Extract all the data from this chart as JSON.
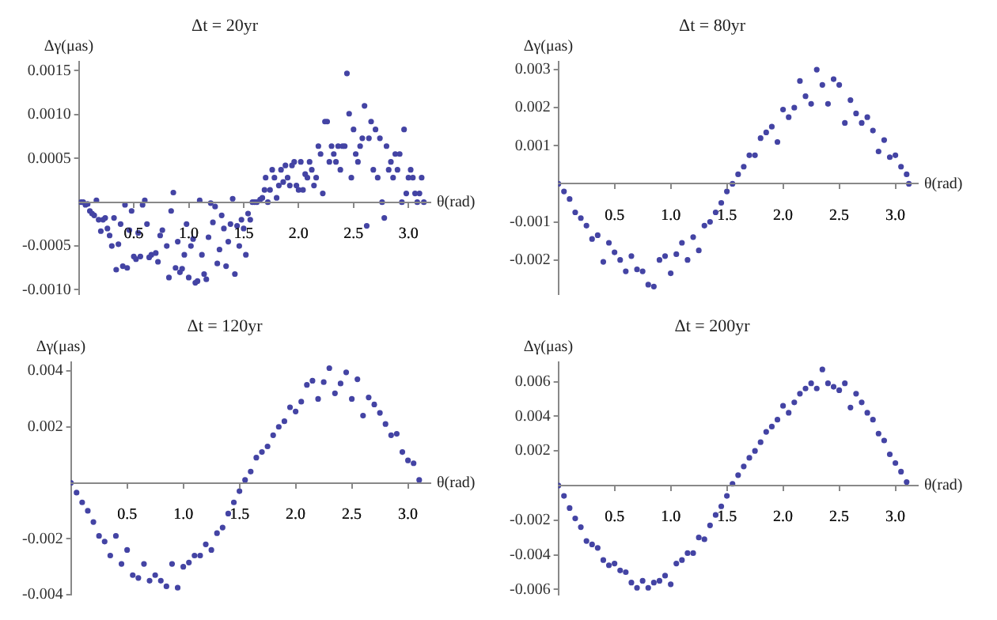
{
  "chart_data": [
    {
      "type": "scatter",
      "title": "Δt = 20yr",
      "xlabel": "θ(rad)",
      "ylabel": "Δγ(μas)",
      "color": "#4444a4",
      "marker": "circle",
      "xlim": [
        0,
        3.2
      ],
      "ylim": [
        -0.00105,
        0.0016
      ],
      "xticks": [
        {
          "value": 0.5,
          "label": "0.5"
        },
        {
          "value": 1,
          "label": "1.0"
        },
        {
          "value": 1.5,
          "label": "1.5"
        },
        {
          "value": 2,
          "label": "2.0"
        },
        {
          "value": 2.5,
          "label": "2.5"
        },
        {
          "value": 3,
          "label": "3.0"
        }
      ],
      "yticks": [
        {
          "value": -0.001,
          "label": "-0.0010"
        },
        {
          "value": -0.0005,
          "label": "-0.0005"
        },
        {
          "value": 0.0005,
          "label": "0.0005"
        },
        {
          "value": 0.001,
          "label": "0.0010"
        },
        {
          "value": 0.0015,
          "label": "0.0015"
        }
      ],
      "x": [
        0.02,
        0.04,
        0.06,
        0.08,
        0.1,
        0.12,
        0.14,
        0.16,
        0.18,
        0.2,
        0.22,
        0.24,
        0.26,
        0.28,
        0.3,
        0.32,
        0.34,
        0.36,
        0.38,
        0.4,
        0.42,
        0.44,
        0.46,
        0.48,
        0.5,
        0.52,
        0.54,
        0.56,
        0.58,
        0.6,
        0.62,
        0.64,
        0.66,
        0.7,
        0.72,
        0.74,
        0.76,
        0.8,
        0.82,
        0.84,
        0.86,
        0.88,
        0.9,
        0.92,
        0.94,
        0.96,
        0.98,
        1.0,
        1.02,
        1.04,
        1.06,
        1.08,
        1.1,
        1.12,
        1.14,
        1.16,
        1.18,
        1.2,
        1.22,
        1.24,
        1.26,
        1.28,
        1.3,
        1.32,
        1.34,
        1.36,
        1.38,
        1.4,
        1.42,
        1.44,
        1.46,
        1.48,
        1.5,
        1.52,
        1.54,
        1.56,
        1.58,
        1.6,
        1.62,
        1.65,
        1.67,
        1.69,
        1.7,
        1.72,
        1.74,
        1.76,
        1.78,
        1.8,
        1.82,
        1.84,
        1.86,
        1.88,
        1.9,
        1.92,
        1.94,
        1.96,
        1.98,
        2.0,
        2.02,
        2.04,
        2.06,
        2.08,
        2.1,
        2.12,
        2.14,
        2.16,
        2.18,
        2.2,
        2.22,
        2.24,
        2.26,
        2.28,
        2.3,
        2.32,
        2.34,
        2.36,
        2.38,
        2.4,
        2.42,
        2.44,
        2.46,
        2.48,
        2.5,
        2.52,
        2.54,
        2.56,
        2.58,
        2.6,
        2.62,
        2.64,
        2.66,
        2.68,
        2.7,
        2.72,
        2.74,
        2.76,
        2.78,
        2.8,
        2.82,
        2.84,
        2.86,
        2.88,
        2.9,
        2.92,
        2.94,
        2.96,
        2.98,
        3.0,
        3.02,
        3.04,
        3.06,
        3.08,
        3.1,
        3.12,
        3.14
      ],
      "values": [
        0,
        0,
        -3e-05,
        -2e-05,
        -0.0001,
        -0.00013,
        -0.00015,
        2e-05,
        -0.0002,
        -0.00033,
        -0.0002,
        -0.00018,
        -0.0003,
        -0.00038,
        -0.0005,
        -0.00018,
        -0.00077,
        -0.00048,
        -0.00025,
        -0.00073,
        -3e-05,
        -0.00075,
        -0.00032,
        -0.0001,
        -0.00062,
        -0.00065,
        -0.00035,
        -0.00062,
        -3e-05,
        2e-05,
        -0.00025,
        -0.00063,
        -0.0006,
        -0.00058,
        -0.00068,
        -0.00038,
        -0.00032,
        -0.0005,
        -0.00086,
        -0.0001,
        0.00011,
        -0.00075,
        -0.00045,
        -0.0008,
        -0.00076,
        -0.0006,
        -0.00025,
        -0.00086,
        -0.0005,
        -0.00042,
        -0.00092,
        -0.0009,
        2e-05,
        -0.0006,
        -0.00082,
        -0.00088,
        -0.0004,
        -1e-05,
        -0.00023,
        -5e-05,
        -0.0007,
        -0.00054,
        -0.00015,
        -0.0003,
        -0.00073,
        -0.00045,
        -0.00025,
        4e-05,
        -0.00082,
        -0.00027,
        -0.0005,
        -0.0002,
        -0.0003,
        -0.0006,
        -0.00013,
        -0.0002,
        0,
        0,
        0,
        3e-05,
        5e-05,
        0.00014,
        0.00028,
        0,
        0.00014,
        0.00037,
        0.00028,
        5e-05,
        0.00019,
        0.00037,
        0.00023,
        0.00042,
        0.00028,
        0.00019,
        0.00042,
        0.00046,
        0.00019,
        0.00014,
        0.00046,
        0.00014,
        0.00032,
        0.00028,
        0.00046,
        0.00037,
        0.00019,
        0.00028,
        0.00064,
        0.00055,
        0.0001,
        0.00092,
        0.00092,
        0.00046,
        0.00064,
        0.00055,
        0.00046,
        0.00064,
        0.00037,
        0.00064,
        0.00064,
        0.00147,
        0.00101,
        0.00028,
        0.00083,
        0.00055,
        0.00046,
        0.00064,
        0.00073,
        0.0011,
        -0.00027,
        0.00073,
        0.00092,
        0.00037,
        0.00083,
        0.00028,
        0.00073,
        0,
        -0.00018,
        0.00064,
        0.00037,
        0.00046,
        0.00028,
        0.00055,
        0.00037,
        0.00055,
        0,
        0.00083,
        0.0001,
        0.00028,
        0.00037,
        0.00028,
        0.0001,
        0,
        0.0001,
        0.00028,
        0
      ]
    },
    {
      "type": "scatter",
      "title": "Δt = 80yr",
      "xlabel": "θ(rad)",
      "ylabel": "Δγ(μas)",
      "color": "#4444a4",
      "marker": "circle",
      "xlim": [
        0,
        3.2
      ],
      "ylim": [
        -0.0029,
        0.0032
      ],
      "xticks": [
        {
          "value": 0.5,
          "label": "0.5"
        },
        {
          "value": 1,
          "label": "1.0"
        },
        {
          "value": 1.5,
          "label": "1.5"
        },
        {
          "value": 2,
          "label": "2.0"
        },
        {
          "value": 2.5,
          "label": "2.5"
        },
        {
          "value": 3,
          "label": "3.0"
        }
      ],
      "yticks": [
        {
          "value": -0.002,
          "label": "-0.002"
        },
        {
          "value": -0.001,
          "label": "-0.001"
        },
        {
          "value": 0.001,
          "label": "0.001"
        },
        {
          "value": 0.002,
          "label": "0.002"
        },
        {
          "value": 0.003,
          "label": "0.003"
        }
      ],
      "x": [
        0,
        0.05,
        0.1,
        0.15,
        0.2,
        0.25,
        0.3,
        0.35,
        0.4,
        0.45,
        0.5,
        0.55,
        0.6,
        0.65,
        0.7,
        0.75,
        0.8,
        0.85,
        0.9,
        0.95,
        1.0,
        1.05,
        1.1,
        1.15,
        1.2,
        1.25,
        1.3,
        1.35,
        1.4,
        1.45,
        1.5,
        1.55,
        1.6,
        1.65,
        1.7,
        1.75,
        1.8,
        1.85,
        1.9,
        1.95,
        2.0,
        2.05,
        2.1,
        2.15,
        2.2,
        2.25,
        2.3,
        2.35,
        2.4,
        2.45,
        2.5,
        2.55,
        2.6,
        2.65,
        2.7,
        2.75,
        2.8,
        2.85,
        2.9,
        2.95,
        3.0,
        3.05,
        3.1,
        3.12
      ],
      "values": [
        0,
        -0.0002,
        -0.0004,
        -0.00075,
        -0.0009,
        -0.0011,
        -0.00145,
        -0.00135,
        -0.00205,
        -0.00155,
        -0.0018,
        -0.002,
        -0.0023,
        -0.0019,
        -0.00225,
        -0.0023,
        -0.00265,
        -0.0027,
        -0.002,
        -0.0019,
        -0.00235,
        -0.00185,
        -0.00155,
        -0.002,
        -0.0014,
        -0.00175,
        -0.0011,
        -0.001,
        -0.00075,
        -0.0005,
        -0.0002,
        0,
        0.00025,
        0.00045,
        0.00075,
        0.00075,
        0.0012,
        0.00135,
        0.0015,
        0.0011,
        0.00195,
        0.00175,
        0.002,
        0.0027,
        0.0023,
        0.0021,
        0.003,
        0.0026,
        0.0021,
        0.00275,
        0.0026,
        0.0016,
        0.0022,
        0.00185,
        0.0016,
        0.00175,
        0.0014,
        0.00085,
        0.00115,
        0.0007,
        0.00075,
        0.00045,
        0.00025,
        0
      ]
    },
    {
      "type": "scatter",
      "title": "Δt = 120yr",
      "xlabel": "θ(rad)",
      "ylabel": "Δγ(μas)",
      "color": "#4444a4",
      "marker": "circle",
      "xlim": [
        0,
        3.2
      ],
      "ylim": [
        -0.004,
        0.0043
      ],
      "xticks": [
        {
          "value": 0.5,
          "label": "0.5"
        },
        {
          "value": 1,
          "label": "1.0"
        },
        {
          "value": 1.5,
          "label": "1.5"
        },
        {
          "value": 2,
          "label": "2.0"
        },
        {
          "value": 2.5,
          "label": "2.5"
        },
        {
          "value": 3,
          "label": "3.0"
        }
      ],
      "yticks": [
        {
          "value": -0.004,
          "label": "-0.004"
        },
        {
          "value": -0.002,
          "label": "-0.002"
        },
        {
          "value": 0.002,
          "label": "0.002"
        },
        {
          "value": 0.004,
          "label": "0.004"
        }
      ],
      "x": [
        0,
        0.05,
        0.1,
        0.15,
        0.2,
        0.25,
        0.3,
        0.35,
        0.4,
        0.45,
        0.5,
        0.55,
        0.6,
        0.65,
        0.7,
        0.75,
        0.8,
        0.85,
        0.9,
        0.95,
        1.0,
        1.05,
        1.1,
        1.15,
        1.2,
        1.25,
        1.3,
        1.35,
        1.4,
        1.45,
        1.5,
        1.55,
        1.6,
        1.65,
        1.7,
        1.75,
        1.8,
        1.85,
        1.9,
        1.95,
        2.0,
        2.05,
        2.1,
        2.15,
        2.2,
        2.25,
        2.3,
        2.35,
        2.4,
        2.45,
        2.5,
        2.55,
        2.6,
        2.65,
        2.7,
        2.75,
        2.8,
        2.85,
        2.9,
        2.95,
        3.0,
        3.05,
        3.1
      ],
      "values": [
        0,
        -0.00035,
        -0.0007,
        -0.001,
        -0.0014,
        -0.0019,
        -0.0021,
        -0.0026,
        -0.0019,
        -0.0029,
        -0.0024,
        -0.0033,
        -0.0034,
        -0.0029,
        -0.0035,
        -0.0033,
        -0.0035,
        -0.0037,
        -0.0029,
        -0.00375,
        -0.003,
        -0.00285,
        -0.0026,
        -0.0026,
        -0.0022,
        -0.0024,
        -0.0018,
        -0.0016,
        -0.0011,
        -0.0007,
        -0.0003,
        0.0001,
        0.0004,
        0.0009,
        0.0011,
        0.0013,
        0.0017,
        0.002,
        0.0022,
        0.0027,
        0.00255,
        0.0029,
        0.0035,
        0.00365,
        0.003,
        0.0036,
        0.0041,
        0.0032,
        0.00355,
        0.00395,
        0.003,
        0.0037,
        0.0024,
        0.00305,
        0.0028,
        0.0025,
        0.0021,
        0.0017,
        0.00175,
        0.0011,
        0.0008,
        0.0007,
        0.0001
      ]
    },
    {
      "type": "scatter",
      "title": "Δt = 200yr",
      "xlabel": "θ(rad)",
      "ylabel": "Δγ(μas)",
      "color": "#4444a4",
      "marker": "circle",
      "xlim": [
        0,
        3.2
      ],
      "ylim": [
        -0.0063,
        0.0071
      ],
      "xticks": [
        {
          "value": 0.5,
          "label": "0.5"
        },
        {
          "value": 1,
          "label": "1.0"
        },
        {
          "value": 1.5,
          "label": "1.5"
        },
        {
          "value": 2,
          "label": "2.0"
        },
        {
          "value": 2.5,
          "label": "2.5"
        },
        {
          "value": 3,
          "label": "3.0"
        }
      ],
      "yticks": [
        {
          "value": -0.006,
          "label": "-0.006"
        },
        {
          "value": -0.004,
          "label": "-0.004"
        },
        {
          "value": -0.002,
          "label": "-0.002"
        },
        {
          "value": 0.002,
          "label": "0.002"
        },
        {
          "value": 0.004,
          "label": "0.004"
        },
        {
          "value": 0.006,
          "label": "0.006"
        }
      ],
      "x": [
        0,
        0.05,
        0.1,
        0.15,
        0.2,
        0.25,
        0.3,
        0.35,
        0.4,
        0.45,
        0.5,
        0.55,
        0.6,
        0.65,
        0.7,
        0.75,
        0.8,
        0.85,
        0.9,
        0.95,
        1.0,
        1.05,
        1.1,
        1.15,
        1.2,
        1.25,
        1.3,
        1.35,
        1.4,
        1.45,
        1.5,
        1.55,
        1.6,
        1.65,
        1.7,
        1.75,
        1.8,
        1.85,
        1.9,
        1.95,
        2.0,
        2.05,
        2.1,
        2.15,
        2.2,
        2.25,
        2.3,
        2.35,
        2.4,
        2.45,
        2.5,
        2.55,
        2.6,
        2.65,
        2.7,
        2.75,
        2.8,
        2.85,
        2.9,
        2.95,
        3.0,
        3.05,
        3.1
      ],
      "values": [
        0,
        -0.0006,
        -0.0013,
        -0.0019,
        -0.0024,
        -0.0032,
        -0.0034,
        -0.0036,
        -0.0043,
        -0.0046,
        -0.0045,
        -0.0049,
        -0.005,
        -0.0056,
        -0.0059,
        -0.0055,
        -0.0059,
        -0.0056,
        -0.0055,
        -0.0052,
        -0.0057,
        -0.0045,
        -0.0043,
        -0.0039,
        -0.0039,
        -0.003,
        -0.0031,
        -0.0023,
        -0.0017,
        -0.0012,
        -0.0006,
        0.0001,
        0.0006,
        0.0011,
        0.0016,
        0.002,
        0.0025,
        0.0031,
        0.0034,
        0.0038,
        0.0046,
        0.0042,
        0.0048,
        0.0053,
        0.0056,
        0.0059,
        0.0056,
        0.0067,
        0.0059,
        0.0057,
        0.0055,
        0.0059,
        0.0045,
        0.0053,
        0.0048,
        0.0042,
        0.0038,
        0.003,
        0.0026,
        0.0018,
        0.0013,
        0.0008,
        0.0002
      ]
    }
  ]
}
